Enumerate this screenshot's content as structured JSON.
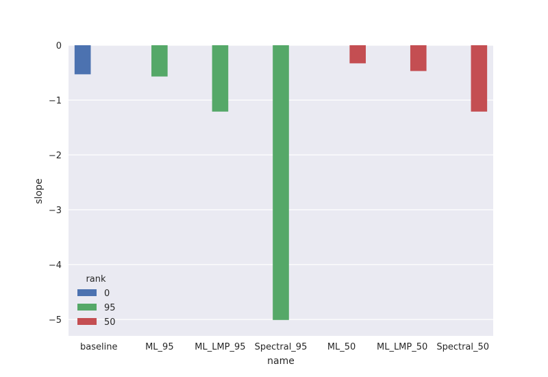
{
  "chart_data": {
    "type": "bar",
    "title": "",
    "xlabel": "name",
    "ylabel": "slope",
    "ylim": [
      -5.3,
      0.0
    ],
    "yticks": [
      0,
      -1,
      -2,
      -3,
      -4,
      -5
    ],
    "ytick_labels": [
      "0",
      "−1",
      "−2",
      "−3",
      "−4",
      "−5"
    ],
    "grid": true,
    "categories": [
      "baseline",
      "ML_95",
      "ML_LMP_95",
      "Spectral_95",
      "ML_50",
      "ML_LMP_50",
      "Spectral_50"
    ],
    "series": [
      {
        "name": "0",
        "color": "#4c72b0",
        "values": [
          -0.53,
          null,
          null,
          null,
          null,
          null,
          null
        ]
      },
      {
        "name": "95",
        "color": "#55a868",
        "values": [
          null,
          -0.57,
          -1.21,
          -5.01,
          null,
          null,
          null
        ]
      },
      {
        "name": "50",
        "color": "#c44e52",
        "values": [
          null,
          null,
          null,
          null,
          -0.33,
          -0.47,
          -1.21
        ]
      }
    ],
    "legend": {
      "title": "rank",
      "placement": "lower-left"
    }
  }
}
